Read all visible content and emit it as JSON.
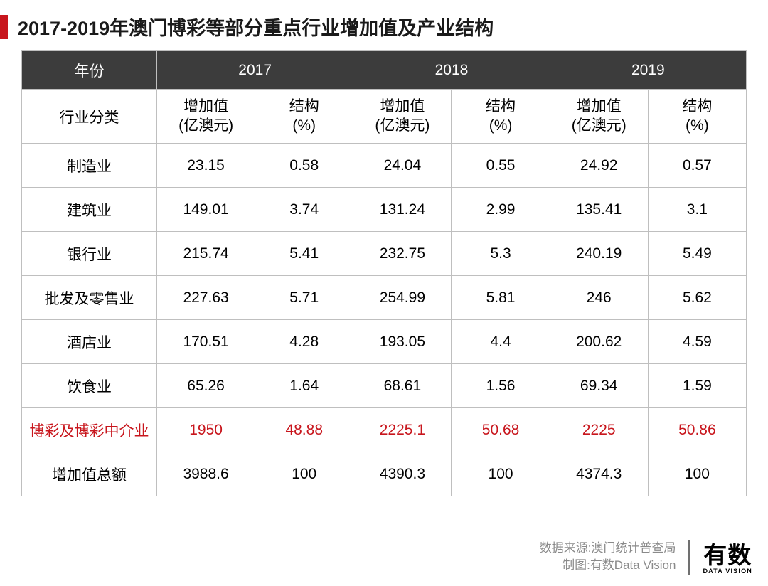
{
  "title": "2017-2019年澳门博彩等部分重点行业增加值及产业结构",
  "colors": {
    "accent": "#c8161d",
    "header_bg": "#3c3c3c",
    "header_fg": "#ffffff",
    "border": "#bfbfbf",
    "text": "#000000",
    "muted": "#8a8a8a"
  },
  "table": {
    "type": "table",
    "year_header_label": "年份",
    "years": [
      "2017",
      "2018",
      "2019"
    ],
    "category_header_label": "行业分类",
    "sub_headers": {
      "value_l1": "增加值",
      "value_l2": "(亿澳元)",
      "pct_l1": "结构",
      "pct_l2": "(%)"
    },
    "rows": [
      {
        "label": "制造业",
        "v2017": "23.15",
        "p2017": "0.58",
        "v2018": "24.04",
        "p2018": "0.55",
        "v2019": "24.92",
        "p2019": "0.57",
        "highlight": false
      },
      {
        "label": "建筑业",
        "v2017": "149.01",
        "p2017": "3.74",
        "v2018": "131.24",
        "p2018": "2.99",
        "v2019": "135.41",
        "p2019": "3.1",
        "highlight": false
      },
      {
        "label": "银行业",
        "v2017": "215.74",
        "p2017": "5.41",
        "v2018": "232.75",
        "p2018": "5.3",
        "v2019": "240.19",
        "p2019": "5.49",
        "highlight": false
      },
      {
        "label": "批发及零售业",
        "v2017": "227.63",
        "p2017": "5.71",
        "v2018": "254.99",
        "p2018": "5.81",
        "v2019": "246",
        "p2019": "5.62",
        "highlight": false
      },
      {
        "label": "酒店业",
        "v2017": "170.51",
        "p2017": "4.28",
        "v2018": "193.05",
        "p2018": "4.4",
        "v2019": "200.62",
        "p2019": "4.59",
        "highlight": false
      },
      {
        "label": "饮食业",
        "v2017": "65.26",
        "p2017": "1.64",
        "v2018": "68.61",
        "p2018": "1.56",
        "v2019": "69.34",
        "p2019": "1.59",
        "highlight": false
      },
      {
        "label": "博彩及博彩中介业",
        "v2017": "1950",
        "p2017": "48.88",
        "v2018": "2225.1",
        "p2018": "50.68",
        "v2019": "2225",
        "p2019": "50.86",
        "highlight": true
      },
      {
        "label": "增加值总额",
        "v2017": "3988.6",
        "p2017": "100",
        "v2018": "4390.3",
        "p2018": "100",
        "v2019": "4374.3",
        "p2019": "100",
        "highlight": false
      }
    ]
  },
  "footer": {
    "source_label": "数据来源:",
    "source_value": "澳门统计普查局",
    "chart_label": "制图:",
    "chart_value": "有数Data Vision",
    "logo_top": "有数",
    "logo_bottom": "DATA VISION"
  }
}
